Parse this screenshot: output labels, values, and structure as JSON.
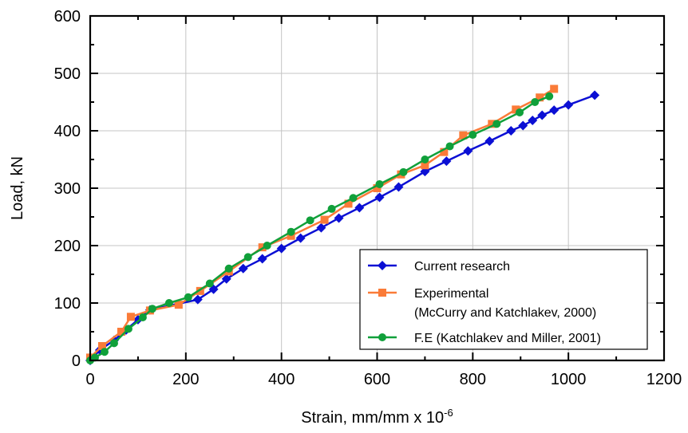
{
  "chart_data": {
    "type": "line",
    "xlabel": "Strain, mm/mm x 10",
    "xlabel_sup": "-6",
    "ylabel": "Load, kN",
    "xlim": [
      0,
      1200
    ],
    "ylim": [
      0,
      600
    ],
    "x_ticks": [
      0,
      200,
      400,
      600,
      800,
      1000,
      1200
    ],
    "y_ticks": [
      0,
      100,
      200,
      300,
      400,
      500,
      600
    ],
    "x_minor_step": 100,
    "y_minor_step": 50,
    "grid": true,
    "legend_position": "bottom-right",
    "series": [
      {
        "name": "Current research",
        "color": "#0b0fd4",
        "marker": "diamond",
        "points": [
          [
            0,
            0
          ],
          [
            20,
            18
          ],
          [
            50,
            35
          ],
          [
            75,
            53
          ],
          [
            100,
            71
          ],
          [
            125,
            88
          ],
          [
            225,
            106
          ],
          [
            258,
            124
          ],
          [
            285,
            142
          ],
          [
            320,
            160
          ],
          [
            360,
            177
          ],
          [
            400,
            195
          ],
          [
            440,
            213
          ],
          [
            483,
            231
          ],
          [
            520,
            248
          ],
          [
            563,
            266
          ],
          [
            605,
            284
          ],
          [
            645,
            302
          ],
          [
            700,
            329
          ],
          [
            745,
            347
          ],
          [
            790,
            365
          ],
          [
            835,
            382
          ],
          [
            880,
            400
          ],
          [
            905,
            409
          ],
          [
            925,
            418
          ],
          [
            945,
            427
          ],
          [
            970,
            436
          ],
          [
            1000,
            445
          ],
          [
            1055,
            462
          ]
        ]
      },
      {
        "name": "Experimental\n(McCurry and Katchlakev, 2000)",
        "name_lines": [
          "Experimental",
          "(McCurry and Katchlakev, 2000)"
        ],
        "color": "#fa7b38",
        "marker": "square",
        "points": [
          [
            0,
            5
          ],
          [
            25,
            25
          ],
          [
            65,
            50
          ],
          [
            85,
            76
          ],
          [
            125,
            87
          ],
          [
            185,
            97
          ],
          [
            230,
            121
          ],
          [
            290,
            155
          ],
          [
            360,
            197
          ],
          [
            420,
            217
          ],
          [
            490,
            245
          ],
          [
            540,
            273
          ],
          [
            600,
            300
          ],
          [
            650,
            324
          ],
          [
            700,
            340
          ],
          [
            740,
            363
          ],
          [
            780,
            392
          ],
          [
            840,
            412
          ],
          [
            890,
            437
          ],
          [
            940,
            458
          ],
          [
            970,
            473
          ]
        ]
      },
      {
        "name": "F.E (Katchlakev and Miller, 2001)",
        "color": "#10a03a",
        "marker": "circle",
        "points": [
          [
            0,
            0
          ],
          [
            10,
            5
          ],
          [
            30,
            15
          ],
          [
            50,
            30
          ],
          [
            80,
            55
          ],
          [
            110,
            75
          ],
          [
            130,
            90
          ],
          [
            165,
            100
          ],
          [
            205,
            110
          ],
          [
            250,
            134
          ],
          [
            290,
            160
          ],
          [
            330,
            180
          ],
          [
            370,
            200
          ],
          [
            420,
            224
          ],
          [
            460,
            244
          ],
          [
            505,
            264
          ],
          [
            550,
            283
          ],
          [
            605,
            307
          ],
          [
            655,
            328
          ],
          [
            700,
            350
          ],
          [
            752,
            373
          ],
          [
            800,
            393
          ],
          [
            850,
            412
          ],
          [
            898,
            432
          ],
          [
            930,
            450
          ],
          [
            960,
            460
          ]
        ]
      }
    ]
  }
}
